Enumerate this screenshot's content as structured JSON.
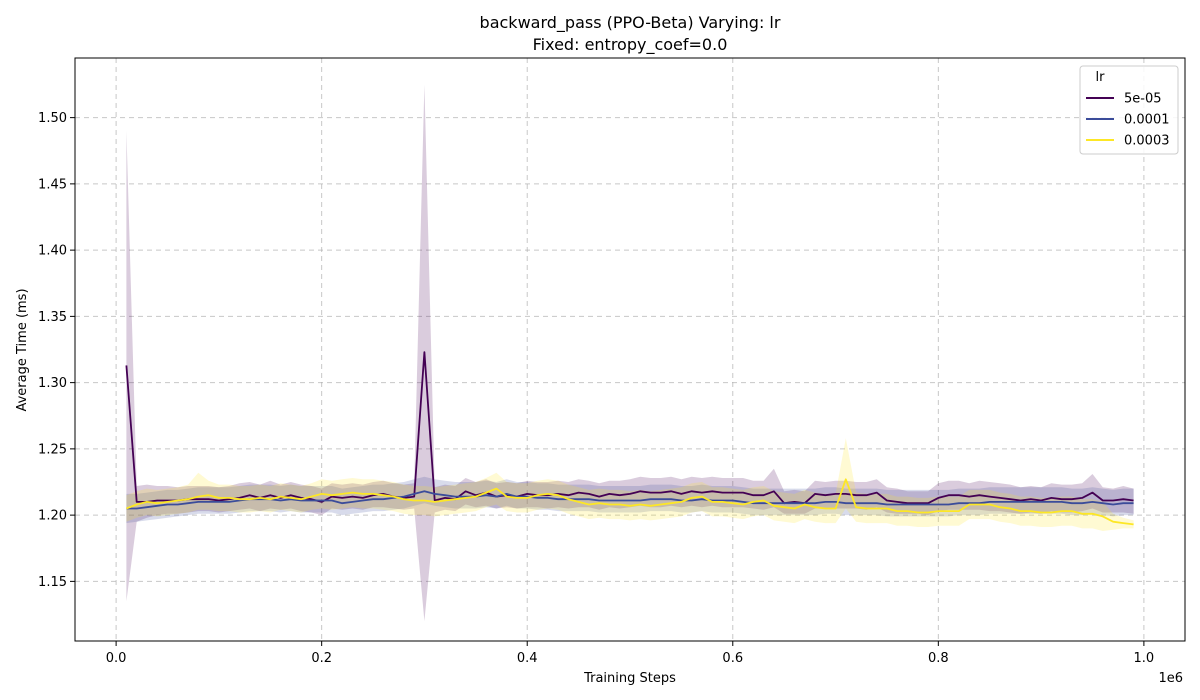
{
  "chart_data": {
    "type": "line",
    "title": "backward_pass (PPO-Beta) Varying: lr",
    "subtitle": "Fixed: entropy_coef=0.0",
    "xlabel": "Training Steps",
    "ylabel": "Average Time (ms)",
    "x_offset_label": "1e6",
    "xlim": [
      -0.04,
      1.04
    ],
    "ylim": [
      1.105,
      1.545
    ],
    "x_ticks": [
      0.0,
      0.2,
      0.4,
      0.6,
      0.8,
      1.0
    ],
    "x_tick_labels": [
      "0.0",
      "0.2",
      "0.4",
      "0.6",
      "0.8",
      "1.0"
    ],
    "y_ticks": [
      1.15,
      1.2,
      1.25,
      1.3,
      1.35,
      1.4,
      1.45,
      1.5
    ],
    "y_tick_labels": [
      "1.15",
      "1.20",
      "1.25",
      "1.30",
      "1.35",
      "1.40",
      "1.45",
      "1.50"
    ],
    "grid": true,
    "legend": {
      "title": "lr",
      "position": "top-right"
    },
    "x": [
      0.01,
      0.02,
      0.03,
      0.04,
      0.05,
      0.06,
      0.07,
      0.08,
      0.09,
      0.1,
      0.11,
      0.12,
      0.13,
      0.14,
      0.15,
      0.16,
      0.17,
      0.18,
      0.19,
      0.2,
      0.21,
      0.22,
      0.23,
      0.24,
      0.25,
      0.26,
      0.27,
      0.28,
      0.29,
      0.3,
      0.31,
      0.32,
      0.33,
      0.34,
      0.35,
      0.36,
      0.37,
      0.38,
      0.39,
      0.4,
      0.41,
      0.42,
      0.43,
      0.44,
      0.45,
      0.46,
      0.47,
      0.48,
      0.49,
      0.5,
      0.51,
      0.52,
      0.53,
      0.54,
      0.55,
      0.56,
      0.57,
      0.58,
      0.59,
      0.6,
      0.61,
      0.62,
      0.63,
      0.64,
      0.65,
      0.66,
      0.67,
      0.68,
      0.69,
      0.7,
      0.71,
      0.72,
      0.73,
      0.74,
      0.75,
      0.76,
      0.77,
      0.78,
      0.79,
      0.8,
      0.81,
      0.82,
      0.83,
      0.84,
      0.85,
      0.86,
      0.87,
      0.88,
      0.89,
      0.9,
      0.91,
      0.92,
      0.93,
      0.94,
      0.95,
      0.96,
      0.97,
      0.98,
      0.99
    ],
    "series": [
      {
        "name": "5e-05",
        "color": "#440154",
        "values": [
          1.313,
          1.21,
          1.21,
          1.211,
          1.211,
          1.211,
          1.212,
          1.212,
          1.212,
          1.211,
          1.212,
          1.213,
          1.215,
          1.213,
          1.215,
          1.213,
          1.215,
          1.213,
          1.212,
          1.21,
          1.214,
          1.213,
          1.214,
          1.213,
          1.215,
          1.216,
          1.214,
          1.213,
          1.214,
          1.323,
          1.211,
          1.213,
          1.212,
          1.218,
          1.215,
          1.217,
          1.214,
          1.215,
          1.214,
          1.216,
          1.215,
          1.215,
          1.216,
          1.215,
          1.217,
          1.216,
          1.214,
          1.216,
          1.215,
          1.216,
          1.218,
          1.217,
          1.217,
          1.218,
          1.216,
          1.218,
          1.217,
          1.218,
          1.217,
          1.217,
          1.217,
          1.215,
          1.215,
          1.218,
          1.209,
          1.21,
          1.209,
          1.216,
          1.215,
          1.216,
          1.216,
          1.215,
          1.215,
          1.217,
          1.211,
          1.21,
          1.209,
          1.209,
          1.209,
          1.213,
          1.215,
          1.215,
          1.214,
          1.215,
          1.214,
          1.213,
          1.212,
          1.211,
          1.212,
          1.211,
          1.213,
          1.212,
          1.212,
          1.213,
          1.217,
          1.211,
          1.211,
          1.212,
          1.211
        ],
        "lower": [
          1.135,
          1.195,
          1.198,
          1.2,
          1.201,
          1.201,
          1.202,
          1.203,
          1.203,
          1.202,
          1.203,
          1.204,
          1.205,
          1.203,
          1.205,
          1.204,
          1.205,
          1.203,
          1.202,
          1.2,
          1.205,
          1.204,
          1.205,
          1.204,
          1.206,
          1.206,
          1.205,
          1.204,
          1.205,
          1.12,
          1.202,
          1.204,
          1.203,
          1.208,
          1.206,
          1.207,
          1.205,
          1.206,
          1.205,
          1.206,
          1.206,
          1.205,
          1.206,
          1.205,
          1.206,
          1.206,
          1.204,
          1.206,
          1.205,
          1.206,
          1.207,
          1.206,
          1.206,
          1.207,
          1.206,
          1.207,
          1.206,
          1.207,
          1.206,
          1.206,
          1.206,
          1.205,
          1.204,
          1.206,
          1.201,
          1.201,
          1.201,
          1.205,
          1.205,
          1.205,
          1.205,
          1.205,
          1.204,
          1.206,
          1.202,
          1.201,
          1.201,
          1.201,
          1.2,
          1.203,
          1.204,
          1.204,
          1.204,
          1.204,
          1.203,
          1.203,
          1.202,
          1.201,
          1.202,
          1.201,
          1.203,
          1.202,
          1.202,
          1.203,
          1.205,
          1.202,
          1.202,
          1.202,
          1.201
        ],
        "upper": [
          1.49,
          1.222,
          1.223,
          1.222,
          1.222,
          1.221,
          1.222,
          1.222,
          1.222,
          1.221,
          1.222,
          1.224,
          1.225,
          1.223,
          1.226,
          1.223,
          1.225,
          1.223,
          1.222,
          1.22,
          1.224,
          1.223,
          1.224,
          1.223,
          1.225,
          1.226,
          1.224,
          1.223,
          1.224,
          1.525,
          1.221,
          1.223,
          1.222,
          1.228,
          1.225,
          1.227,
          1.224,
          1.225,
          1.224,
          1.226,
          1.225,
          1.225,
          1.226,
          1.225,
          1.227,
          1.226,
          1.224,
          1.226,
          1.226,
          1.227,
          1.229,
          1.228,
          1.228,
          1.229,
          1.227,
          1.229,
          1.228,
          1.229,
          1.228,
          1.228,
          1.228,
          1.226,
          1.226,
          1.235,
          1.218,
          1.219,
          1.218,
          1.226,
          1.225,
          1.226,
          1.226,
          1.225,
          1.225,
          1.227,
          1.221,
          1.22,
          1.218,
          1.218,
          1.218,
          1.224,
          1.226,
          1.226,
          1.224,
          1.226,
          1.225,
          1.224,
          1.223,
          1.221,
          1.222,
          1.221,
          1.224,
          1.223,
          1.223,
          1.224,
          1.231,
          1.221,
          1.22,
          1.222,
          1.22
        ]
      },
      {
        "name": "0.0001",
        "color": "#3b4c9a",
        "values": [
          1.205,
          1.205,
          1.206,
          1.207,
          1.208,
          1.208,
          1.209,
          1.21,
          1.21,
          1.21,
          1.21,
          1.211,
          1.212,
          1.212,
          1.212,
          1.211,
          1.212,
          1.211,
          1.211,
          1.211,
          1.211,
          1.209,
          1.21,
          1.211,
          1.212,
          1.212,
          1.213,
          1.214,
          1.216,
          1.218,
          1.216,
          1.215,
          1.214,
          1.214,
          1.214,
          1.215,
          1.214,
          1.216,
          1.214,
          1.214,
          1.213,
          1.213,
          1.212,
          1.212,
          1.212,
          1.212,
          1.211,
          1.211,
          1.211,
          1.211,
          1.211,
          1.212,
          1.212,
          1.212,
          1.211,
          1.211,
          1.212,
          1.211,
          1.211,
          1.211,
          1.21,
          1.209,
          1.209,
          1.209,
          1.209,
          1.209,
          1.209,
          1.209,
          1.21,
          1.21,
          1.209,
          1.209,
          1.209,
          1.209,
          1.208,
          1.208,
          1.208,
          1.208,
          1.208,
          1.208,
          1.208,
          1.209,
          1.209,
          1.209,
          1.21,
          1.21,
          1.21,
          1.21,
          1.21,
          1.21,
          1.21,
          1.21,
          1.209,
          1.209,
          1.21,
          1.209,
          1.208,
          1.209,
          1.209
        ],
        "lower": [
          1.194,
          1.195,
          1.196,
          1.197,
          1.198,
          1.199,
          1.2,
          1.201,
          1.201,
          1.201,
          1.201,
          1.202,
          1.203,
          1.203,
          1.203,
          1.202,
          1.203,
          1.202,
          1.202,
          1.202,
          1.202,
          1.2,
          1.201,
          1.202,
          1.203,
          1.203,
          1.204,
          1.205,
          1.207,
          1.209,
          1.207,
          1.206,
          1.205,
          1.205,
          1.205,
          1.206,
          1.205,
          1.207,
          1.205,
          1.205,
          1.204,
          1.204,
          1.203,
          1.203,
          1.203,
          1.203,
          1.202,
          1.202,
          1.202,
          1.202,
          1.202,
          1.203,
          1.203,
          1.203,
          1.202,
          1.202,
          1.203,
          1.202,
          1.202,
          1.202,
          1.201,
          1.2,
          1.2,
          1.2,
          1.2,
          1.2,
          1.2,
          1.2,
          1.201,
          1.201,
          1.2,
          1.2,
          1.2,
          1.2,
          1.199,
          1.199,
          1.199,
          1.199,
          1.199,
          1.199,
          1.199,
          1.2,
          1.2,
          1.2,
          1.201,
          1.201,
          1.201,
          1.201,
          1.201,
          1.201,
          1.201,
          1.201,
          1.2,
          1.2,
          1.201,
          1.2,
          1.199,
          1.2,
          1.2
        ],
        "upper": [
          1.216,
          1.216,
          1.217,
          1.218,
          1.219,
          1.219,
          1.22,
          1.221,
          1.221,
          1.221,
          1.221,
          1.222,
          1.223,
          1.223,
          1.223,
          1.222,
          1.223,
          1.222,
          1.222,
          1.222,
          1.222,
          1.22,
          1.221,
          1.222,
          1.223,
          1.223,
          1.224,
          1.225,
          1.227,
          1.229,
          1.227,
          1.226,
          1.225,
          1.225,
          1.225,
          1.226,
          1.225,
          1.227,
          1.225,
          1.225,
          1.224,
          1.224,
          1.223,
          1.223,
          1.223,
          1.223,
          1.222,
          1.222,
          1.222,
          1.222,
          1.222,
          1.223,
          1.223,
          1.223,
          1.222,
          1.222,
          1.223,
          1.222,
          1.222,
          1.222,
          1.221,
          1.22,
          1.22,
          1.22,
          1.22,
          1.22,
          1.22,
          1.22,
          1.221,
          1.221,
          1.22,
          1.22,
          1.22,
          1.22,
          1.219,
          1.219,
          1.219,
          1.219,
          1.219,
          1.219,
          1.219,
          1.22,
          1.22,
          1.22,
          1.221,
          1.221,
          1.221,
          1.221,
          1.221,
          1.221,
          1.221,
          1.221,
          1.22,
          1.22,
          1.221,
          1.22,
          1.219,
          1.22,
          1.22
        ]
      },
      {
        "name": "0.0003",
        "color": "#fde725",
        "values": [
          1.205,
          1.208,
          1.21,
          1.209,
          1.21,
          1.211,
          1.212,
          1.214,
          1.215,
          1.213,
          1.213,
          1.212,
          1.212,
          1.213,
          1.212,
          1.214,
          1.213,
          1.212,
          1.214,
          1.216,
          1.215,
          1.216,
          1.217,
          1.216,
          1.216,
          1.215,
          1.214,
          1.212,
          1.211,
          1.211,
          1.21,
          1.211,
          1.212,
          1.213,
          1.214,
          1.217,
          1.22,
          1.214,
          1.213,
          1.213,
          1.215,
          1.216,
          1.215,
          1.212,
          1.21,
          1.208,
          1.209,
          1.208,
          1.208,
          1.207,
          1.208,
          1.207,
          1.208,
          1.209,
          1.21,
          1.213,
          1.214,
          1.21,
          1.21,
          1.209,
          1.208,
          1.21,
          1.211,
          1.207,
          1.206,
          1.205,
          1.208,
          1.206,
          1.205,
          1.205,
          1.227,
          1.206,
          1.205,
          1.205,
          1.205,
          1.203,
          1.203,
          1.202,
          1.202,
          1.203,
          1.203,
          1.203,
          1.208,
          1.208,
          1.208,
          1.206,
          1.205,
          1.203,
          1.203,
          1.202,
          1.202,
          1.203,
          1.203,
          1.201,
          1.201,
          1.199,
          1.195,
          1.194,
          1.193
        ],
        "lower": [
          1.195,
          1.198,
          1.2,
          1.199,
          1.2,
          1.201,
          1.202,
          1.204,
          1.204,
          1.203,
          1.203,
          1.202,
          1.202,
          1.203,
          1.202,
          1.204,
          1.203,
          1.202,
          1.204,
          1.205,
          1.204,
          1.205,
          1.206,
          1.205,
          1.205,
          1.204,
          1.203,
          1.201,
          1.2,
          1.2,
          1.199,
          1.2,
          1.201,
          1.202,
          1.203,
          1.206,
          1.208,
          1.203,
          1.202,
          1.202,
          1.204,
          1.205,
          1.204,
          1.201,
          1.199,
          1.197,
          1.198,
          1.197,
          1.197,
          1.196,
          1.197,
          1.196,
          1.197,
          1.198,
          1.199,
          1.202,
          1.203,
          1.199,
          1.199,
          1.198,
          1.197,
          1.199,
          1.2,
          1.196,
          1.195,
          1.194,
          1.197,
          1.195,
          1.194,
          1.194,
          1.205,
          1.195,
          1.194,
          1.194,
          1.194,
          1.192,
          1.192,
          1.191,
          1.191,
          1.192,
          1.192,
          1.192,
          1.197,
          1.197,
          1.197,
          1.195,
          1.194,
          1.192,
          1.192,
          1.191,
          1.191,
          1.192,
          1.192,
          1.19,
          1.19,
          1.188,
          1.189,
          1.19,
          1.19
        ],
        "upper": [
          1.215,
          1.218,
          1.22,
          1.219,
          1.22,
          1.221,
          1.223,
          1.232,
          1.226,
          1.223,
          1.223,
          1.222,
          1.222,
          1.223,
          1.222,
          1.224,
          1.223,
          1.222,
          1.224,
          1.227,
          1.226,
          1.227,
          1.228,
          1.227,
          1.227,
          1.226,
          1.225,
          1.223,
          1.222,
          1.222,
          1.221,
          1.222,
          1.223,
          1.224,
          1.225,
          1.228,
          1.232,
          1.225,
          1.224,
          1.224,
          1.226,
          1.227,
          1.226,
          1.223,
          1.221,
          1.219,
          1.22,
          1.219,
          1.219,
          1.218,
          1.219,
          1.218,
          1.219,
          1.22,
          1.221,
          1.224,
          1.225,
          1.221,
          1.221,
          1.22,
          1.219,
          1.221,
          1.222,
          1.218,
          1.217,
          1.216,
          1.219,
          1.217,
          1.216,
          1.216,
          1.258,
          1.217,
          1.216,
          1.216,
          1.216,
          1.214,
          1.214,
          1.213,
          1.213,
          1.214,
          1.214,
          1.214,
          1.219,
          1.219,
          1.219,
          1.217,
          1.216,
          1.214,
          1.214,
          1.213,
          1.213,
          1.214,
          1.214,
          1.212,
          1.212,
          1.21,
          1.201,
          1.198,
          1.196
        ]
      }
    ]
  }
}
